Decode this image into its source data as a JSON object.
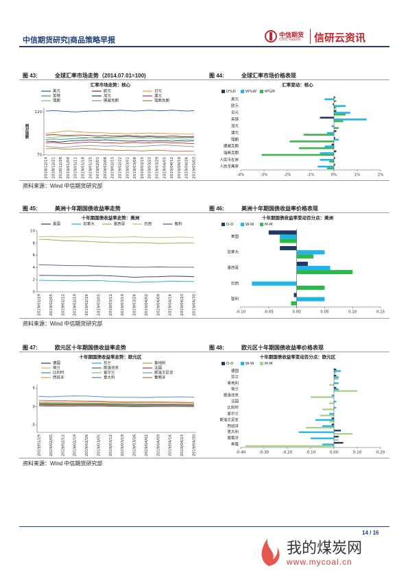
{
  "header": {
    "title": "中信期货研究|商品策略早报",
    "logo_cn": "中信期货",
    "logo_en": "CITIC Futures",
    "brand": "信研云资讯"
  },
  "figures": [
    {
      "label": "图 43:",
      "title": "全球汇率市场走势（2014.07.01=100)",
      "chart": {
        "type": "line",
        "title": "汇率市场走势：核心",
        "ylabel": "相对指数",
        "x": [
          "2018/12/14",
          "2018/12/21",
          "2018/12/28",
          "2019/01/04",
          "2019/01/11",
          "2019/01/18",
          "2019/01/25",
          "2019/02/01",
          "2019/02/08",
          "2019/02/15",
          "2019/02/22",
          "2019/03/01",
          "2019/03/08",
          "2019/03/15",
          "2019/03/22",
          "2019/03/29",
          "2019/04/05",
          "2019/04/12",
          "2019/04/19",
          "2019/04/26",
          "2019/05/03"
        ],
        "ylim": [
          70,
          125
        ],
        "yticks": [
          70,
          120
        ],
        "series": [
          {
            "name": "美元",
            "color": "#1f4fa0",
            "values": [
              121,
              121.5,
              121,
              120.5,
              120,
              120.5,
              121,
              121,
              121.5,
              121.5,
              122,
              121.5,
              121,
              121.5,
              122,
              121.5,
              121.5,
              122,
              121.5,
              121,
              121.5
            ]
          },
          {
            "name": "欧元",
            "color": "#8b1a1a",
            "values": [
              93,
              93.5,
              93,
              92.5,
              93,
              93,
              92.5,
              92,
              92.5,
              92,
              92,
              92.5,
              92,
              91.5,
              92,
              91.5,
              91.5,
              92,
              91.5,
              91,
              91.5
            ]
          },
          {
            "name": "日元",
            "color": "#e69a3c",
            "values": [
              95,
              96,
              97,
              98,
              97,
              96.5,
              96,
              96,
              95.5,
              95,
              95,
              94.5,
              95,
              95,
              95.5,
              95,
              95,
              94.5,
              94.5,
              94,
              94.5
            ]
          },
          {
            "name": "英镑",
            "color": "#2a8a8a",
            "values": [
              88,
              88.5,
              88,
              88.5,
              89,
              89.5,
              90,
              90.5,
              90,
              90.5,
              91,
              91.5,
              91,
              90.5,
              91,
              90.5,
              90.5,
              90,
              90.5,
              90,
              90.5
            ]
          },
          {
            "name": "加元",
            "color": "#1c2f6b",
            "values": [
              86,
              85.5,
              85,
              86,
              86.5,
              87,
              87.5,
              87,
              87.5,
              87,
              86.5,
              86,
              86,
              86.5,
              86,
              86.5,
              86.5,
              86,
              86.5,
              86,
              86.5
            ]
          },
          {
            "name": "澳元",
            "color": "#c0282d",
            "values": [
              84,
              84.5,
              83.5,
              83,
              84,
              84.5,
              85,
              84.5,
              84,
              84,
              83.5,
              84,
              84.5,
              84,
              84,
              84.5,
              84.5,
              84,
              84,
              83.5,
              83
            ]
          },
          {
            "name": "瑞朗",
            "color": "#7fbf5f",
            "values": [
              90,
              90.5,
              91,
              91.5,
              91,
              90.5,
              90,
              89.5,
              89.5,
              89,
              89.5,
              89,
              89.5,
              89.5,
              89,
              89.5,
              89,
              88.5,
              88.5,
              88,
              88.5
            ]
          },
          {
            "name": "挪威克朗",
            "color": "#8c8c8c",
            "values": [
              80,
              79,
              78.5,
              79,
              80,
              80.5,
              81,
              80.5,
              80,
              80.5,
              80,
              79.5,
              79.5,
              80,
              80.5,
              81,
              81.5,
              81,
              80.5,
              80,
              79.5
            ]
          },
          {
            "name": "瑞典克朗",
            "color": "#b07030",
            "values": [
              77,
              77.5,
              77,
              76.5,
              77,
              77.5,
              77,
              76.5,
              76,
              75.5,
              75,
              75.5,
              75,
              74.5,
              75,
              75.5,
              75,
              74.5,
              74,
              74.5,
              74
            ]
          }
        ]
      }
    },
    {
      "label": "图 44:",
      "title": "全球汇率市场价格表现",
      "chart": {
        "type": "bar",
        "orientation": "horizontal",
        "title": "汇率变动：核心",
        "categories": [
          "美元",
          "欧元",
          "日元",
          "英镑",
          "加元",
          "澳元",
          "瑞朗",
          "挪威克朗",
          "瑞典克朗",
          "人民币在岸",
          "人民币离岸"
        ],
        "xlim": [
          -4,
          2
        ],
        "xticks": [
          {
            "value": -4,
            "label": "-4%"
          },
          {
            "value": -3,
            "label": "-3%"
          },
          {
            "value": -2,
            "label": "-2%"
          },
          {
            "value": -1,
            "label": "-1%"
          },
          {
            "value": 0,
            "label": "0%"
          },
          {
            "value": 1,
            "label": "1%"
          },
          {
            "value": 2,
            "label": "2%"
          }
        ],
        "series": [
          {
            "name": "D%D",
            "color": "#1f3864",
            "values": [
              0.05,
              -0.05,
              0.1,
              -0.6,
              0,
              0.1,
              0.05,
              -0.1,
              0.1,
              0.05,
              0.05
            ]
          },
          {
            "name": "W%W",
            "color": "#1fb5ea",
            "values": [
              -0.4,
              0.5,
              0.7,
              1.4,
              -0.1,
              -0.3,
              0.2,
              -0.4,
              -0.6,
              -0.6,
              -0.7
            ]
          },
          {
            "name": "M%M",
            "color": "#3cb44b",
            "values": [
              0.1,
              0.1,
              0.5,
              0.4,
              0.2,
              -1.3,
              -1.9,
              -1.5,
              -3.1,
              -0.2,
              -0.3
            ]
          }
        ]
      }
    },
    {
      "label": "图 45:",
      "title": "美洲十年期国债收益率走势",
      "chart": {
        "type": "line",
        "title": "十年期国债收益率走势：美洲",
        "x": [
          "2019/01/29",
          "2019/02/05",
          "2019/02/12",
          "2019/02/19",
          "2019/02/26",
          "2019/03/05",
          "2019/03/12",
          "2019/03/19",
          "2019/03/26",
          "2019/04/02",
          "2019/04/09",
          "2019/04/16",
          "2019/04/23",
          "2019/04/30"
        ],
        "ylim": [
          0,
          10
        ],
        "yticks": [
          0,
          2,
          4,
          6,
          8,
          10
        ],
        "series": [
          {
            "name": "美国",
            "color": "#1f3d7a",
            "values": [
              2.72,
              2.7,
              2.68,
              2.66,
              2.68,
              2.72,
              2.63,
              2.54,
              2.4,
              2.48,
              2.5,
              2.59,
              2.57,
              2.5
            ]
          },
          {
            "name": "加拿大",
            "color": "#1aa6d9",
            "values": [
              1.9,
              1.88,
              1.86,
              1.82,
              1.85,
              1.88,
              1.75,
              1.68,
              1.55,
              1.62,
              1.66,
              1.77,
              1.74,
              1.7
            ]
          },
          {
            "name": "墨西哥",
            "color": "#a5a23a",
            "values": [
              8.65,
              8.55,
              8.4,
              8.35,
              8.3,
              8.2,
              8.1,
              8.05,
              8.1,
              8.05,
              7.95,
              7.98,
              8.02,
              8.03
            ]
          },
          {
            "name": "巴西",
            "color": "#c9b46a",
            "values": [
              9.05,
              9.1,
              9,
              9.05,
              9.1,
              9,
              8.95,
              9,
              9.05,
              8.95,
              8.9,
              8.95,
              9,
              8.9
            ]
          },
          {
            "name": "智利",
            "color": "#5a4b8a",
            "values": [
              4.45,
              4.4,
              4.35,
              4.3,
              4.3,
              4.2,
              4.15,
              4.1,
              4.05,
              4.05,
              4.1,
              4.05,
              4.05,
              4.05
            ]
          }
        ]
      }
    },
    {
      "label": "图 46:",
      "title": "美洲十年期国债收益率价格表现",
      "chart": {
        "type": "bar",
        "orientation": "horizontal",
        "title": "十年期国债收益率变动百分点：美洲",
        "categories": [
          "美国",
          "加拿大",
          "墨西哥",
          "巴西",
          "智利"
        ],
        "xlim": [
          -0.1,
          0.15
        ],
        "xticks": [
          {
            "value": -0.1,
            "label": "-0.10"
          },
          -0.05,
          {
            "value": 0,
            "label": "0.00"
          },
          0.05,
          {
            "value": 0.1,
            "label": "0.10"
          },
          0.15
        ],
        "series": [
          {
            "name": "D-D",
            "color": "#1f3864",
            "values": [
              -0.05,
              -0.03,
              0.02,
              0,
              -0.005
            ]
          },
          {
            "name": "W-W",
            "color": "#1fb5ea",
            "values": [
              -0.03,
              0.05,
              0.06,
              -0.08,
              0.05
            ]
          },
          {
            "name": "M-M",
            "color": "#2eb84b",
            "values": [
              -0.03,
              0.03,
              0.1,
              0.05,
              -0.01
            ]
          }
        ]
      }
    },
    {
      "label": "图 47:",
      "title": "欧元区十年期国债收益率走势",
      "chart": {
        "type": "line",
        "title": "十年期国债收益率走势：欧元区",
        "x": [
          "2019/01/29",
          "2019/02/05",
          "2019/02/12",
          "2019/02/19",
          "2019/02/26",
          "2019/03/05",
          "2019/03/12",
          "2019/03/19",
          "2019/03/26",
          "2019/04/02",
          "2019/04/09",
          "2019/04/16",
          "2019/04/23",
          "2019/04/30"
        ],
        "ylim": [
          -7,
          6
        ],
        "yticks": [
          -5,
          0,
          5
        ],
        "series": [
          {
            "name": "德国",
            "color": "#1f3d7a",
            "values": [
              0.2,
              0.15,
              0.12,
              0.1,
              0.18,
              0.12,
              0.08,
              0.05,
              -0.05,
              0,
              0.02,
              0.05,
              0.02,
              0.01
            ]
          },
          {
            "name": "芬兰",
            "color": "#1aa6d9",
            "values": [
              0.45,
              0.4,
              0.38,
              0.35,
              0.42,
              0.38,
              0.34,
              0.3,
              0.22,
              0.25,
              0.28,
              0.3,
              0.28,
              0.27
            ]
          },
          {
            "name": "奥地利",
            "color": "#a5a23a",
            "values": [
              0.5,
              0.45,
              0.42,
              0.4,
              0.45,
              0.4,
              0.36,
              0.32,
              0.25,
              0.28,
              0.3,
              0.32,
              0.3,
              0.29
            ]
          },
          {
            "name": "荷兰",
            "color": "#c9b46a",
            "values": [
              0.35,
              0.3,
              0.28,
              0.25,
              0.32,
              0.28,
              0.24,
              0.2,
              0.12,
              0.15,
              0.18,
              0.2,
              0.18,
              0.17
            ]
          },
          {
            "name": "斯洛伐克",
            "color": "#5a4b8a",
            "values": [
              0.9,
              0.88,
              0.86,
              0.85,
              0.88,
              0.85,
              0.82,
              0.8,
              0.75,
              0.72,
              0.7,
              0.68,
              0.65,
              0.62
            ]
          },
          {
            "name": "法国",
            "color": "#c0282d",
            "values": [
              0.6,
              0.55,
              0.52,
              0.5,
              0.58,
              0.52,
              0.45,
              0.4,
              0.32,
              0.35,
              0.38,
              0.4,
              0.38,
              0.36
            ]
          },
          {
            "name": "比利时",
            "color": "#2a8a8a",
            "values": [
              0.75,
              0.7,
              0.66,
              0.64,
              0.7,
              0.65,
              0.58,
              0.52,
              0.45,
              0.48,
              0.5,
              0.52,
              0.5,
              0.49
            ]
          },
          {
            "name": "爱尔兰",
            "color": "#7fbf5f",
            "values": [
              0.95,
              0.9,
              0.88,
              0.85,
              0.9,
              0.82,
              0.72,
              0.65,
              0.55,
              0.58,
              0.6,
              0.62,
              0.6,
              0.58
            ]
          },
          {
            "name": "斯洛文尼亚",
            "color": "#8c8c8c",
            "values": [
              1,
              0.98,
              0.95,
              0.92,
              0.95,
              0.9,
              0.85,
              0.8,
              0.72,
              0.7,
              0.68,
              0.66,
              0.62,
              0.6
            ]
          },
          {
            "name": "西班牙",
            "color": "#e69a3c",
            "values": [
              1.3,
              1.25,
              1.22,
              1.25,
              1.28,
              1.2,
              1.15,
              1.1,
              1.05,
              1.08,
              1.1,
              1.05,
              1,
              0.98
            ]
          },
          {
            "name": "意大利",
            "color": "#4a7fc1",
            "values": [
              2.75,
              2.65,
              2.8,
              2.9,
              2.85,
              2.7,
              2.55,
              2.5,
              2.5,
              2.45,
              2.55,
              2.6,
              2.65,
              2.55
            ]
          },
          {
            "name": "葡萄牙",
            "color": "#b07030",
            "values": [
              1.7,
              1.65,
              1.62,
              1.55,
              1.5,
              1.45,
              1.35,
              1.3,
              1.25,
              1.3,
              1.28,
              1.2,
              1.15,
              1.12
            ]
          }
        ]
      }
    },
    {
      "label": "图 48:",
      "title": "欧元区十年期国债收益率价格表现",
      "chart": {
        "type": "bar",
        "orientation": "horizontal",
        "title": "十年期国债收益率变动百分点：欧元区",
        "categories": [
          "德国",
          "芬兰",
          "奥地利",
          "荷兰",
          "斯洛伐克",
          "法国",
          "比利时",
          "爱尔兰",
          "斯洛文尼亚",
          "西班牙",
          "意大利",
          "葡萄牙",
          "希腊"
        ],
        "xlim": [
          -0.4,
          0.2
        ],
        "xticks": [
          {
            "value": -0.4,
            "label": "-0.40"
          },
          {
            "value": -0.3,
            "label": "-0.30"
          },
          {
            "value": -0.2,
            "label": "-0.20"
          },
          {
            "value": -0.1,
            "label": "-0.10"
          },
          {
            "value": 0,
            "label": "0.00"
          },
          {
            "value": 0.1,
            "label": "0.10"
          },
          {
            "value": 0.2,
            "label": "0.20"
          }
        ],
        "series": [
          {
            "name": "D-D",
            "color": "#1f3864",
            "values": [
              0.01,
              0.01,
              0,
              0.01,
              0,
              0,
              0,
              0,
              -0.01,
              -0.01,
              0.03,
              0.02,
              0.04
            ]
          },
          {
            "name": "W-W",
            "color": "#1fb5ea",
            "values": [
              0.03,
              0.02,
              0.02,
              0.02,
              -0.01,
              0.01,
              0.01,
              -0.02,
              -0.08,
              -0.05,
              -0.15,
              -0.1,
              -0.05
            ]
          },
          {
            "name": "M-M",
            "color": "#a8d08d",
            "values": [
              0.01,
              0.02,
              -0.02,
              0.1,
              -0.1,
              -0.02,
              -0.05,
              -0.06,
              -0.02,
              -0.12,
              0.08,
              0.02,
              -0.38
            ]
          }
        ]
      }
    }
  ],
  "sources": [
    "资料来源：Wind  中信期货研究部",
    "资料来源：Wind  中信期货研究部",
    "资料来源：Wind  中信期货研究部"
  ],
  "page_number": "14 / 16",
  "watermark": {
    "text": "我的煤炭网",
    "url": "www.mycoal.cn"
  }
}
